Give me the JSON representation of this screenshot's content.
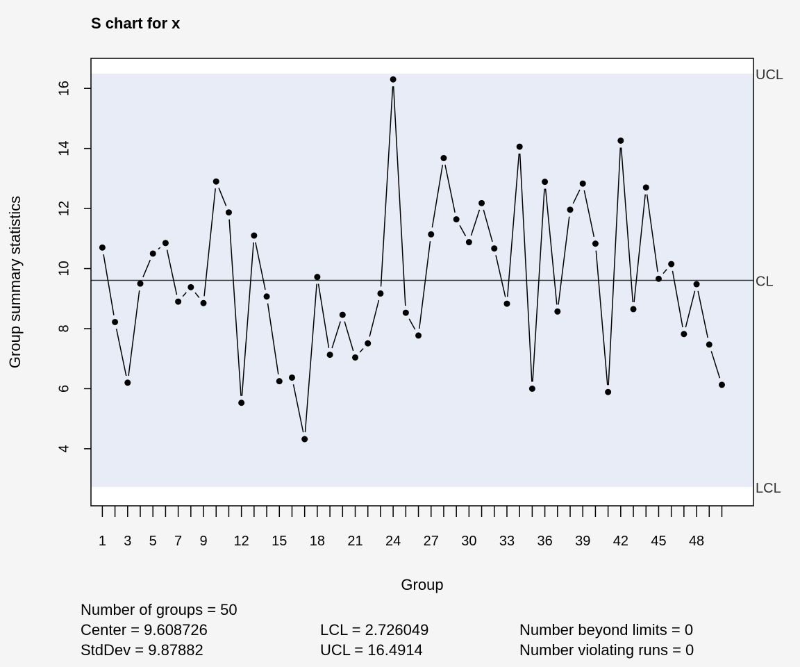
{
  "chart_data": {
    "type": "line",
    "title": "S chart for x",
    "xlabel": "Group",
    "ylabel": "Group summary statistics",
    "x": [
      1,
      2,
      3,
      4,
      5,
      6,
      7,
      8,
      9,
      10,
      11,
      12,
      13,
      14,
      15,
      16,
      17,
      18,
      19,
      20,
      21,
      22,
      23,
      24,
      25,
      26,
      27,
      28,
      29,
      30,
      31,
      32,
      33,
      34,
      35,
      36,
      37,
      38,
      39,
      40,
      41,
      42,
      43,
      44,
      45,
      46,
      47,
      48,
      49,
      50
    ],
    "values": [
      10.7,
      8.22,
      6.2,
      9.5,
      10.5,
      10.85,
      8.9,
      9.38,
      8.85,
      12.9,
      11.87,
      5.53,
      11.1,
      9.07,
      6.25,
      6.37,
      4.32,
      9.72,
      7.13,
      8.46,
      7.04,
      7.51,
      9.17,
      16.3,
      8.53,
      7.77,
      11.14,
      13.68,
      11.64,
      10.88,
      12.18,
      10.67,
      8.83,
      14.06,
      6.0,
      12.89,
      8.57,
      11.96,
      12.83,
      10.83,
      5.89,
      14.26,
      8.65,
      12.7,
      9.66,
      10.15,
      7.82,
      9.48,
      7.47,
      6.13
    ],
    "center": 9.608726,
    "lcl": 2.726049,
    "ucl": 16.4914,
    "ylim": [
      2.1,
      17.0
    ],
    "xlim": [
      0.1,
      52.5
    ],
    "yticks": [
      4,
      6,
      8,
      10,
      12,
      14,
      16
    ],
    "xtick_positions": [
      1,
      2,
      3,
      4,
      5,
      6,
      7,
      8,
      9,
      10,
      11,
      12,
      13,
      14,
      15,
      16,
      17,
      18,
      19,
      20,
      21,
      22,
      23,
      24,
      25,
      26,
      27,
      28,
      29,
      30,
      31,
      32,
      33,
      34,
      35,
      36,
      37,
      38,
      39,
      40,
      41,
      42,
      43,
      44,
      45,
      46,
      47,
      48,
      49,
      50
    ],
    "xtick_labels": [
      1,
      3,
      5,
      7,
      9,
      12,
      15,
      18,
      21,
      24,
      27,
      30,
      33,
      36,
      39,
      42,
      45,
      48
    ],
    "limit_labels": {
      "ucl": "UCL",
      "cl": "CL",
      "lcl": "LCL"
    },
    "colors": {
      "band": "#e7ecf6",
      "line": "#000000",
      "center_line": "#333333",
      "background": "#f5f5f5",
      "plot_bg": "#ffffff"
    }
  },
  "stats": {
    "groups": "Number of groups = 50",
    "center": "Center = 9.608726",
    "stddev": "StdDev = 9.87882",
    "lcl": "LCL = 2.726049",
    "ucl": "UCL = 16.4914",
    "beyond": "Number beyond limits = 0",
    "violating": "Number violating runs = 0"
  }
}
